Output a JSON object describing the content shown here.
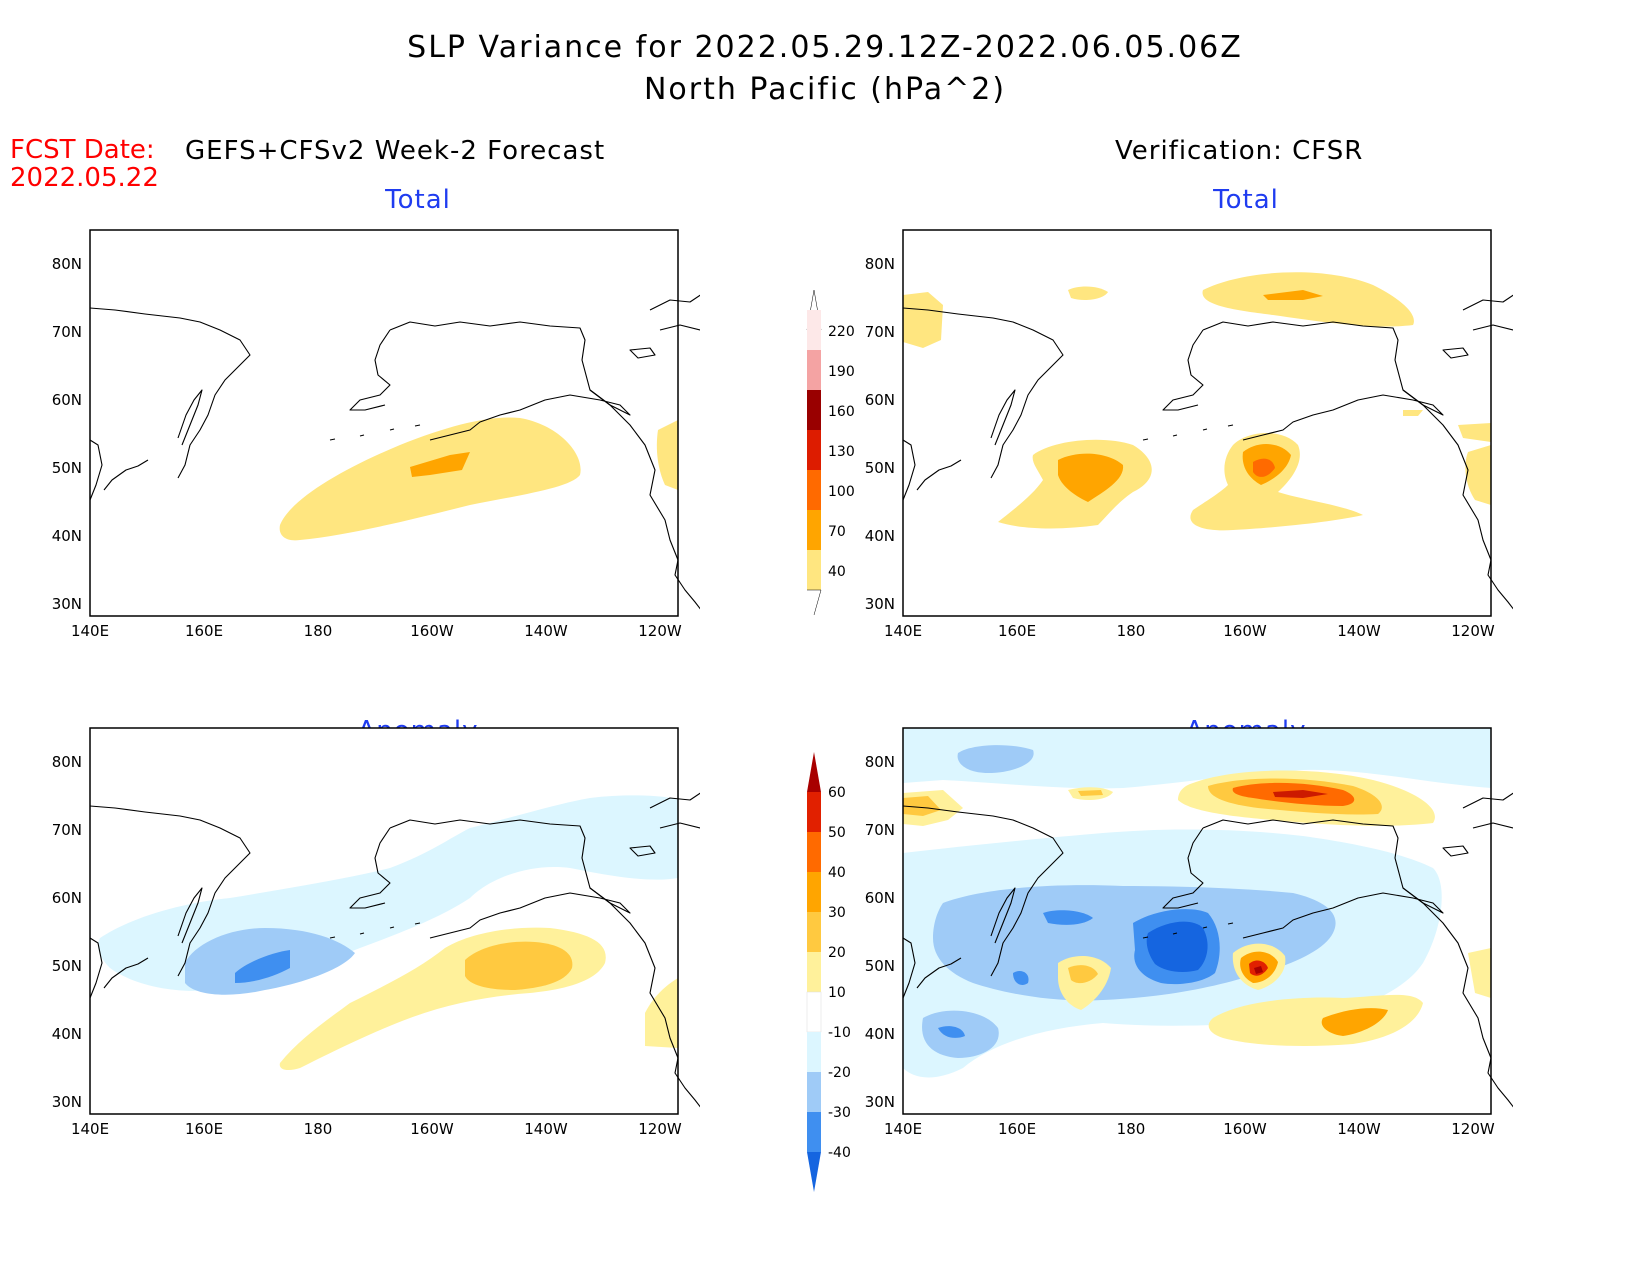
{
  "title": {
    "line1": "SLP Variance for 2022.05.29.12Z-2022.06.05.06Z",
    "line2": "North Pacific (hPa^2)"
  },
  "fcst_date": {
    "label": "FCST Date:",
    "value": "2022.05.22"
  },
  "columns": {
    "left_header": "GEFS+CFSv2 Week-2 Forecast",
    "right_header": "Verification: CFSR"
  },
  "panels": {
    "forecast_total": {
      "subtitle": "Total"
    },
    "verification_total": {
      "subtitle": "Total"
    },
    "forecast_anomaly": {
      "subtitle": "Anomaly"
    },
    "verification_anomaly": {
      "subtitle": "Anomaly"
    }
  },
  "axes": {
    "lat_labels": [
      "80N",
      "70N",
      "60N",
      "50N",
      "40N",
      "30N"
    ],
    "lon_labels": [
      "140E",
      "160E",
      "180",
      "160W",
      "140W",
      "120W"
    ]
  },
  "colorbars": {
    "total": {
      "labels": [
        "220",
        "190",
        "160",
        "130",
        "100",
        "70",
        "40"
      ],
      "colors": [
        "#fde8e8",
        "#f4a3a3",
        "#990000",
        "#dd1c00",
        "#ff6a00",
        "#ffa500",
        "#ffe680"
      ]
    },
    "anomaly": {
      "labels": [
        "60",
        "50",
        "40",
        "30",
        "20",
        "10",
        "-10",
        "-20",
        "-30",
        "-40"
      ],
      "colors": [
        "#a80000",
        "#e12000",
        "#ff6a00",
        "#ffa500",
        "#ffc940",
        "#fff19b",
        "#ffffff",
        "#dcf6ff",
        "#9fcbf7",
        "#3f8ff0",
        "#1565e0"
      ]
    }
  },
  "chart_data": [
    {
      "type": "heatmap",
      "title": "Total",
      "variable": "SLP variance (hPa^2)",
      "xlim": [
        "140E",
        "110W"
      ],
      "ylim": [
        "25N",
        "85N"
      ],
      "features": [
        {
          "region": "broad band 40N-53N, 180-130W",
          "value_range": [
            40,
            70
          ]
        },
        {
          "center": [
            "48N",
            "152W"
          ],
          "value_range": [
            70,
            100
          ]
        }
      ]
    },
    {
      "type": "heatmap",
      "title": "Total",
      "variable": "SLP variance (hPa^2)",
      "xlim": [
        "140E",
        "110W"
      ],
      "ylim": [
        "25N",
        "85N"
      ],
      "features": [
        {
          "center": [
            "46N",
            "175E"
          ],
          "value_range": [
            70,
            100
          ]
        },
        {
          "center": [
            "48N",
            "155W"
          ],
          "value_range": [
            100,
            130
          ]
        },
        {
          "center": [
            "75N",
            "150W"
          ],
          "value_range": [
            70,
            100
          ]
        }
      ]
    },
    {
      "type": "heatmap",
      "title": "Anomaly",
      "variable": "SLP variance anomaly (hPa^2)",
      "xlim": [
        "140E",
        "110W"
      ],
      "ylim": [
        "25N",
        "85N"
      ],
      "features": [
        {
          "center": [
            "46N",
            "168E"
          ],
          "value_range": [
            -40,
            -30
          ]
        },
        {
          "center": [
            "47N",
            "140W"
          ],
          "value_range": [
            20,
            30
          ]
        }
      ]
    },
    {
      "type": "heatmap",
      "title": "Anomaly",
      "variable": "SLP variance anomaly (hPa^2)",
      "xlim": [
        "140E",
        "110W"
      ],
      "ylim": [
        "25N",
        "85N"
      ],
      "features": [
        {
          "center": [
            "48N",
            "168W"
          ],
          "value_range": [
            -40,
            -30
          ]
        },
        {
          "center": [
            "48N",
            "155W"
          ],
          "value_range": [
            50,
            60
          ]
        },
        {
          "center": [
            "75N",
            "148W"
          ],
          "value_range": [
            50,
            60
          ]
        },
        {
          "center": [
            "38N",
            "153E"
          ],
          "value_range": [
            -30,
            -20
          ]
        },
        {
          "center": [
            "41N",
            "136W"
          ],
          "value_range": [
            30,
            40
          ]
        }
      ]
    }
  ]
}
